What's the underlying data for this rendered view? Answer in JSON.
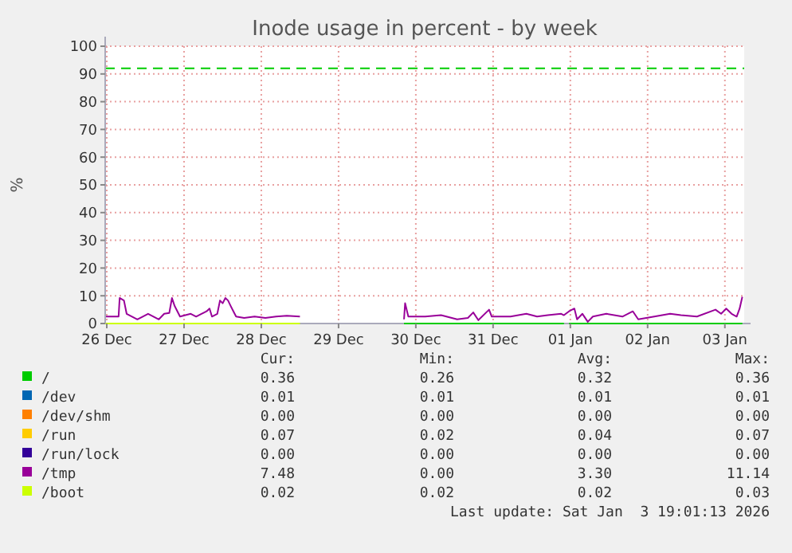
{
  "chart_data": {
    "type": "line",
    "title": "Inode usage in percent - by week",
    "ylabel": "%",
    "xlim": [
      "2025-12-26T11:30",
      "2026-01-03T18:00"
    ],
    "xticks": [
      {
        "value": "2025-12-26T12:00",
        "label": "26 Dec"
      },
      {
        "value": "2025-12-27T12:00",
        "label": "27 Dec"
      },
      {
        "value": "2025-12-28T12:00",
        "label": "28 Dec"
      },
      {
        "value": "2025-12-29T12:00",
        "label": "29 Dec"
      },
      {
        "value": "2025-12-30T12:00",
        "label": "30 Dec"
      },
      {
        "value": "2025-12-31T12:00",
        "label": "31 Dec"
      },
      {
        "value": "2026-01-01T12:00",
        "label": "01 Jan"
      },
      {
        "value": "2026-01-02T12:00",
        "label": "02 Jan"
      },
      {
        "value": "2026-01-03T12:00",
        "label": "03 Jan"
      }
    ],
    "ylim": [
      0,
      100
    ],
    "yticks": [
      0,
      10,
      20,
      30,
      40,
      50,
      60,
      70,
      80,
      90,
      100
    ],
    "grid": true,
    "legend": "bottom",
    "line_style": "solid",
    "marker": "none",
    "series": [
      {
        "name": "/",
        "color": "#00cc00",
        "x": [
          "2025-12-30T08:20",
          "2026-01-01T10:00",
          "2026-01-01T10:50",
          "2026-01-01T11:35",
          "2026-01-03T17:25"
        ],
        "values": [
          0,
          0,
          null,
          0,
          0
        ]
      },
      {
        "name": "/dev",
        "color": "#0066b3"
      },
      {
        "name": "/dev/shm",
        "color": "#ff8000"
      },
      {
        "name": "/run",
        "color": "#ffcc00"
      },
      {
        "name": "/run/lock",
        "color": "#330099"
      },
      {
        "name": "/tmp",
        "color": "#990099",
        "x": [
          "2025-12-26T11:30",
          "2025-12-26T15:40",
          "2025-12-26T16:00",
          "2025-12-26T17:20",
          "2025-12-26T18:10",
          "2025-12-26T19:50",
          "2025-12-26T21:30",
          "2025-12-26T23:10",
          "2025-12-27T00:50",
          "2025-12-27T02:30",
          "2025-12-27T04:10",
          "2025-12-27T05:50",
          "2025-12-27T07:25",
          "2025-12-27T08:15",
          "2025-12-27T09:05",
          "2025-12-27T10:45",
          "2025-12-27T12:25",
          "2025-12-27T14:05",
          "2025-12-27T15:45",
          "2025-12-27T17:25",
          "2025-12-27T19:00",
          "2025-12-27T19:55",
          "2025-12-27T20:40",
          "2025-12-27T22:20",
          "2025-12-27T23:10",
          "2025-12-28T00:00",
          "2025-12-28T00:50",
          "2025-12-28T01:40",
          "2025-12-28T02:30",
          "2025-12-28T03:20",
          "2025-12-28T04:10",
          "2025-12-28T06:40",
          "2025-12-28T09:55",
          "2025-12-28T13:15",
          "2025-12-28T16:35",
          "2025-12-28T19:55",
          "2025-12-29T00:00",
          "2025-12-29T12:00",
          "2025-12-30T08:20",
          "2025-12-30T08:40",
          "2025-12-30T09:40",
          "2025-12-30T14:55",
          "2025-12-30T19:50",
          "2025-12-31T00:50",
          "2025-12-31T04:10",
          "2025-12-31T05:50",
          "2025-12-31T07:25",
          "2025-12-31T10:45",
          "2025-12-31T11:35",
          "2025-12-31T17:25",
          "2025-12-31T22:20",
          "2026-01-01T01:40",
          "2026-01-01T05:00",
          "2026-01-01T09:10",
          "2026-01-01T10:00",
          "2026-01-01T11:35",
          "2026-01-01T13:15",
          "2026-01-01T14:05",
          "2026-01-01T15:45",
          "2026-01-01T17:25",
          "2026-01-01T19:00",
          "2026-01-01T23:10",
          "2026-01-02T04:10",
          "2026-01-02T07:25",
          "2026-01-02T09:05",
          "2026-01-02T14:05",
          "2026-01-02T19:00",
          "2026-01-02T22:20",
          "2026-01-03T03:20",
          "2026-01-03T09:05",
          "2026-01-03T10:50",
          "2026-01-03T12:25",
          "2026-01-03T14:05",
          "2026-01-03T15:40",
          "2026-01-03T16:35",
          "2026-01-03T17:25"
        ],
        "values": [
          2.5,
          2.5,
          9.2,
          8.3,
          3.5,
          2.5,
          1.5,
          2.5,
          3.5,
          2.5,
          1.5,
          3.5,
          3.8,
          9.2,
          6.3,
          2.5,
          3,
          3.5,
          2.5,
          3.5,
          4.4,
          5.4,
          2.5,
          3.5,
          8.3,
          7.3,
          9.2,
          8.3,
          6.3,
          4.4,
          2.5,
          2,
          2.5,
          2,
          2.5,
          2.8,
          2.5,
          null,
          1.5,
          7.3,
          2.5,
          2.5,
          3,
          1.5,
          2,
          4,
          1.2,
          5,
          2.5,
          2.5,
          3.5,
          2.5,
          3,
          3.5,
          3,
          4.4,
          5.4,
          1.5,
          3.5,
          0.6,
          2.5,
          3.5,
          2.5,
          4.4,
          1.5,
          2.5,
          3.5,
          3,
          2.5,
          5,
          3.5,
          5.4,
          3.5,
          2.5,
          5.4,
          9.6
        ]
      },
      {
        "name": "/boot",
        "color": "#ccff00",
        "x": [
          "2025-12-26T11:30",
          "2025-12-29T00:00"
        ],
        "values": [
          0,
          0
        ]
      }
    ],
    "ref_lines": [
      {
        "axis": "y",
        "value": 92,
        "color": "#00cc00",
        "line_style": "dashed"
      }
    ],
    "annotations": [
      "Cur:",
      "Min:",
      "Avg:",
      "Max:",
      "0.36",
      "0.26",
      "0.32",
      "0.36",
      "0.01",
      "0.01",
      "0.01",
      "0.01",
      "0.00",
      "0.00",
      "0.00",
      "0.00",
      "0.07",
      "0.02",
      "0.04",
      "0.07",
      "0.00",
      "0.00",
      "0.00",
      "0.00",
      "7.48",
      "0.00",
      "3.30",
      "11.14",
      "0.02",
      "0.02",
      "0.02",
      "0.03",
      "Last update: Sat Jan  3 19:01:13 2026"
    ]
  }
}
